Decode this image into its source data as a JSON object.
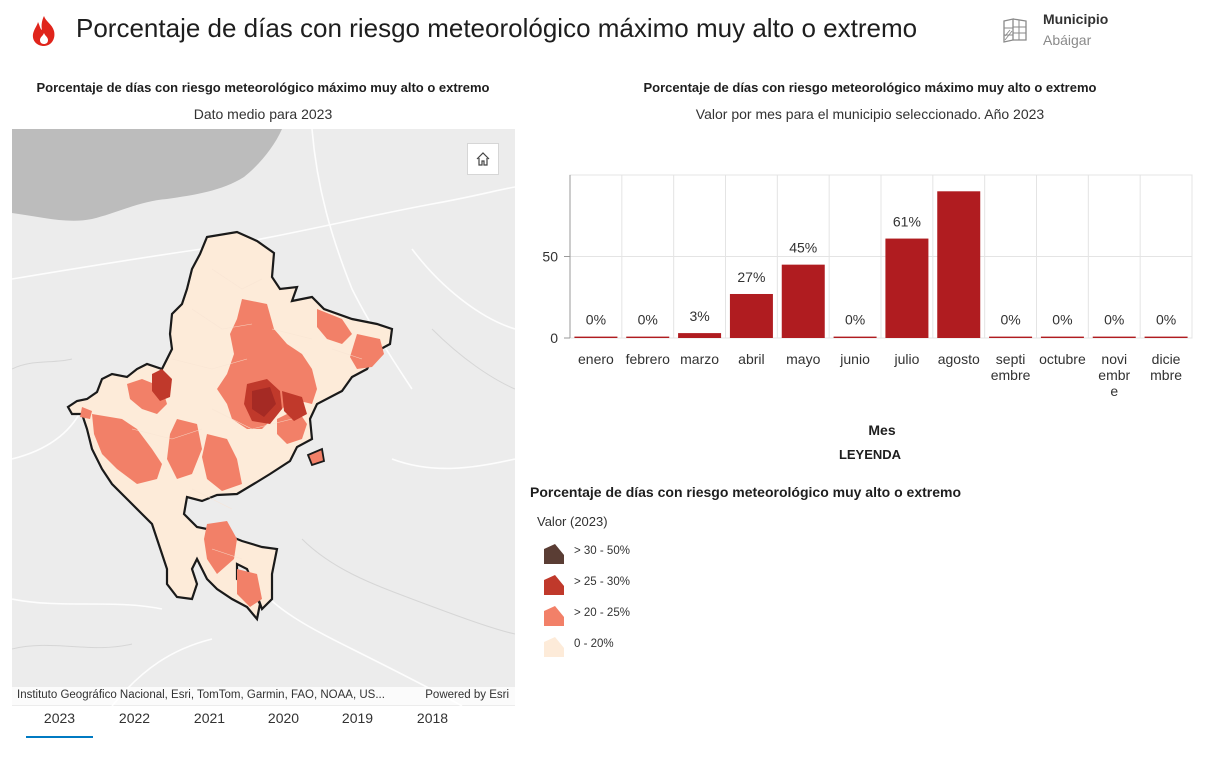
{
  "header": {
    "title": "Porcentaje de días con riesgo meteorológico máximo muy alto o extremo",
    "municipio_label": "Municipio",
    "municipio_value": "Abáigar",
    "brand_color": "#e0241b"
  },
  "map_panel": {
    "title": "Porcentaje de días con riesgo meteorológico máximo muy alto o extremo",
    "subtitle": "Dato medio para 2023",
    "attribution": "Instituto Geográfico Nacional, Esri, TomTom, Garmin, FAO, NOAA, US...",
    "powered_by": "Powered by Esri",
    "home_icon": "home-icon"
  },
  "tabs": [
    {
      "label": "2023",
      "active": true
    },
    {
      "label": "2022",
      "active": false
    },
    {
      "label": "2021",
      "active": false
    },
    {
      "label": "2020",
      "active": false
    },
    {
      "label": "2019",
      "active": false
    },
    {
      "label": "2018",
      "active": false
    }
  ],
  "chart_panel": {
    "title": "Porcentaje de días con riesgo meteorológico máximo muy alto o extremo",
    "subtitle": "Valor por mes para el municipio seleccionado. Año 2023"
  },
  "chart_data": {
    "type": "bar",
    "categories": [
      "enero",
      "febrero",
      "marzo",
      "abril",
      "mayo",
      "junio",
      "julio",
      "agosto",
      "septiembre",
      "octubre",
      "noviembre",
      "diciembre"
    ],
    "category_label_lines": [
      [
        "enero"
      ],
      [
        "febrero"
      ],
      [
        "marzo"
      ],
      [
        "abril"
      ],
      [
        "mayo"
      ],
      [
        "junio"
      ],
      [
        "julio"
      ],
      [
        "agosto"
      ],
      [
        "septi",
        "embre"
      ],
      [
        "octubre"
      ],
      [
        "novi",
        "embr",
        "e"
      ],
      [
        "dicie",
        "mbre"
      ]
    ],
    "values": [
      0,
      0,
      3,
      27,
      45,
      0,
      61,
      90,
      0,
      0,
      0,
      0
    ],
    "data_labels": [
      "0%",
      "0%",
      "3%",
      "27%",
      "45%",
      "0%",
      "61%",
      "",
      "0%",
      "0%",
      "0%",
      "0%"
    ],
    "xlabel": "Mes",
    "ylabel": "",
    "ylim": [
      0,
      100
    ],
    "yticks": [
      0,
      50
    ],
    "bar_color": "#b01c20",
    "grid": true
  },
  "legend": {
    "header": "LEYENDA",
    "title": "Porcentaje de días con riesgo meteorológico muy alto o extremo",
    "field": "Valor (2023)",
    "items": [
      {
        "label": "> 30 - 50%",
        "color": "#5a3d34"
      },
      {
        "label": "> 25 - 30%",
        "color": "#c0392b"
      },
      {
        "label": "> 20 - 25%",
        "color": "#f28068"
      },
      {
        "label": "0 - 20%",
        "color": "#fdebd9"
      }
    ]
  }
}
